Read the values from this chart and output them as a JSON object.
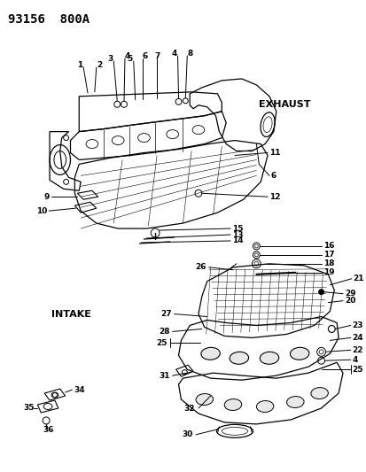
{
  "title": "93156  800A",
  "background_color": "#ffffff",
  "text_color": "#000000",
  "exhaust_label": "EXHAUST",
  "intake_label": "INTAKE",
  "figsize": [
    4.14,
    5.33
  ],
  "dpi": 100,
  "exhaust_top_leaders": [
    [
      100,
      60,
      "1"
    ],
    [
      110,
      55,
      "2"
    ],
    [
      132,
      60,
      "3"
    ],
    [
      140,
      55,
      "4"
    ],
    [
      152,
      60,
      "5"
    ],
    [
      160,
      55,
      "6"
    ],
    [
      178,
      58,
      "7"
    ],
    [
      202,
      55,
      "4"
    ],
    [
      212,
      58,
      "8"
    ]
  ],
  "small_parts_right": [
    [
      290,
      275,
      "16"
    ],
    [
      290,
      283,
      "17"
    ],
    [
      290,
      291,
      "18"
    ]
  ]
}
